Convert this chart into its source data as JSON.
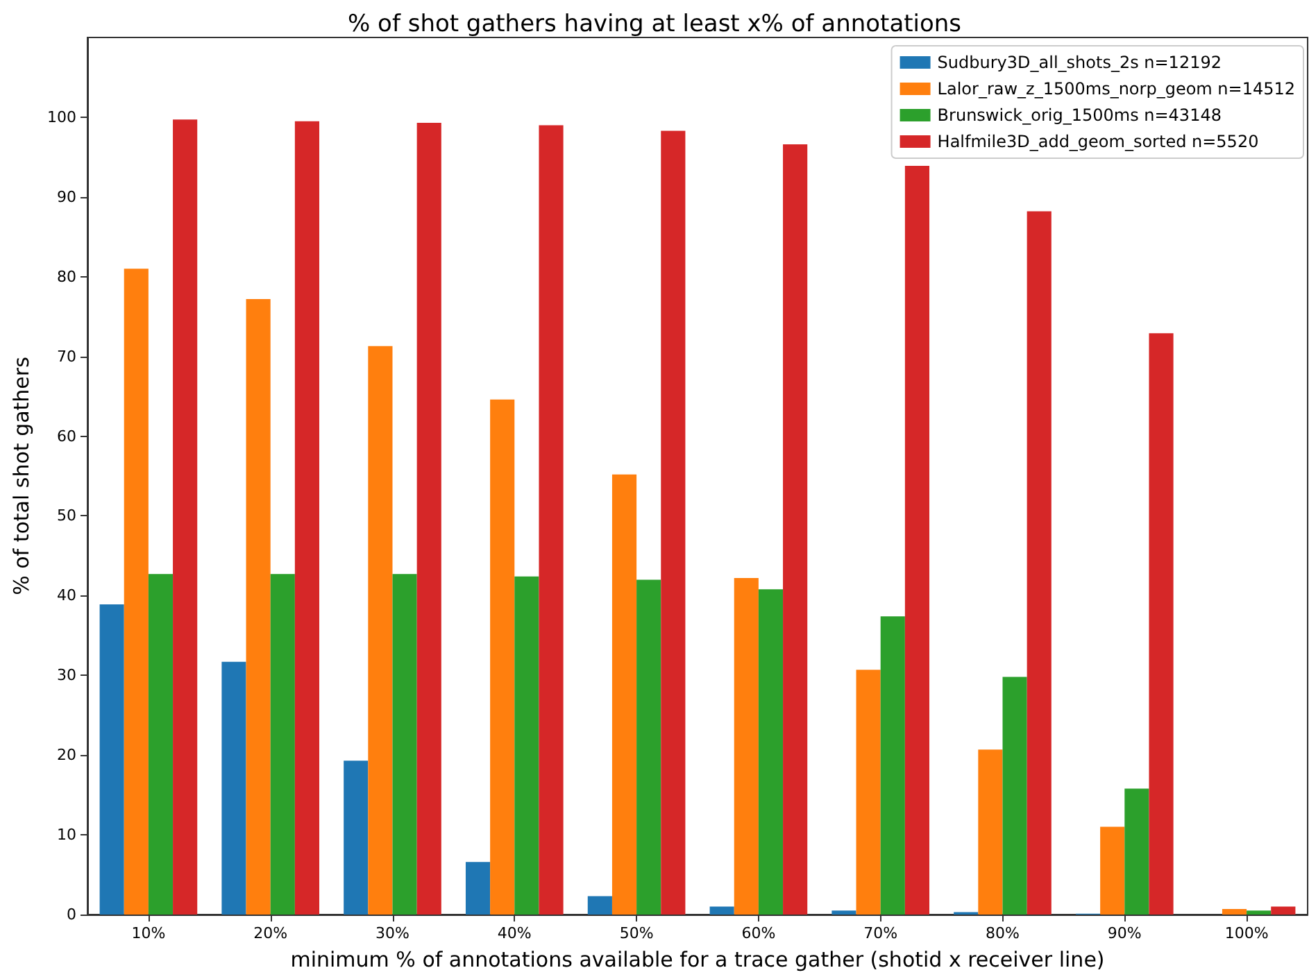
{
  "chart_data": {
    "type": "bar",
    "title": "% of shot gathers having at least x% of annotations",
    "xlabel": "minimum % of annotations available for a trace gather (shotid x receiver line)",
    "ylabel": "% of total shot gathers",
    "categories": [
      "10%",
      "20%",
      "30%",
      "40%",
      "50%",
      "60%",
      "70%",
      "80%",
      "90%",
      "100%"
    ],
    "series": [
      {
        "name": "Sudbury3D_all_shots_2s n=12192",
        "color": "#1f77b4",
        "values": [
          38.9,
          31.7,
          19.3,
          6.6,
          2.3,
          1.0,
          0.5,
          0.3,
          0.1,
          0
        ]
      },
      {
        "name": "Lalor_raw_z_1500ms_norp_geom n=14512",
        "color": "#ff7f0e",
        "values": [
          81.0,
          77.2,
          71.3,
          64.6,
          55.2,
          42.2,
          30.7,
          20.7,
          11.0,
          0.7
        ]
      },
      {
        "name": "Brunswick_orig_1500ms n=43148",
        "color": "#2ca02c",
        "values": [
          42.7,
          42.7,
          42.7,
          42.4,
          42.0,
          40.8,
          37.4,
          29.8,
          15.8,
          0.5
        ]
      },
      {
        "name": "Halfmile3D_add_geom_sorted n=5520",
        "color": "#d62728",
        "values": [
          99.7,
          99.5,
          99.3,
          99.0,
          98.3,
          96.6,
          93.9,
          88.2,
          72.9,
          1.0
        ]
      }
    ],
    "ylim": [
      0,
      110
    ],
    "yticks": [
      0,
      10,
      20,
      30,
      40,
      50,
      60,
      70,
      80,
      90,
      100
    ],
    "grid": false,
    "legend": "top right"
  }
}
